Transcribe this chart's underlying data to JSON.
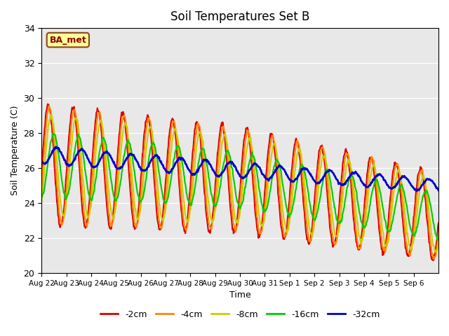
{
  "title": "Soil Temperatures Set B",
  "xlabel": "Time",
  "ylabel": "Soil Temperature (C)",
  "ylim": [
    20,
    34
  ],
  "yticks": [
    20,
    22,
    24,
    26,
    28,
    30,
    32,
    34
  ],
  "background_color": "#ffffff",
  "plot_bg_color": "#e8e8e8",
  "annotation_label": "BA_met",
  "annotation_box_color": "#ffff99",
  "annotation_text_color": "#8B0000",
  "series": {
    "-2cm": {
      "color": "#dd0000",
      "lw": 1.5
    },
    "-4cm": {
      "color": "#ff8800",
      "lw": 1.5
    },
    "-8cm": {
      "color": "#cccc00",
      "lw": 1.5
    },
    "-16cm": {
      "color": "#00cc00",
      "lw": 1.5
    },
    "-32cm": {
      "color": "#0000cc",
      "lw": 2.0
    }
  },
  "x_tick_labels": [
    "Aug 22",
    "Aug 23",
    "Aug 24",
    "Aug 25",
    "Aug 26",
    "Aug 27",
    "Aug 28",
    "Aug 29",
    "Aug 30",
    "Aug 31",
    "Sep 1",
    "Sep 2",
    "Sep 3",
    "Sep 4",
    "Sep 5",
    "Sep 6"
  ],
  "n_days": 16,
  "points_per_day": 48
}
